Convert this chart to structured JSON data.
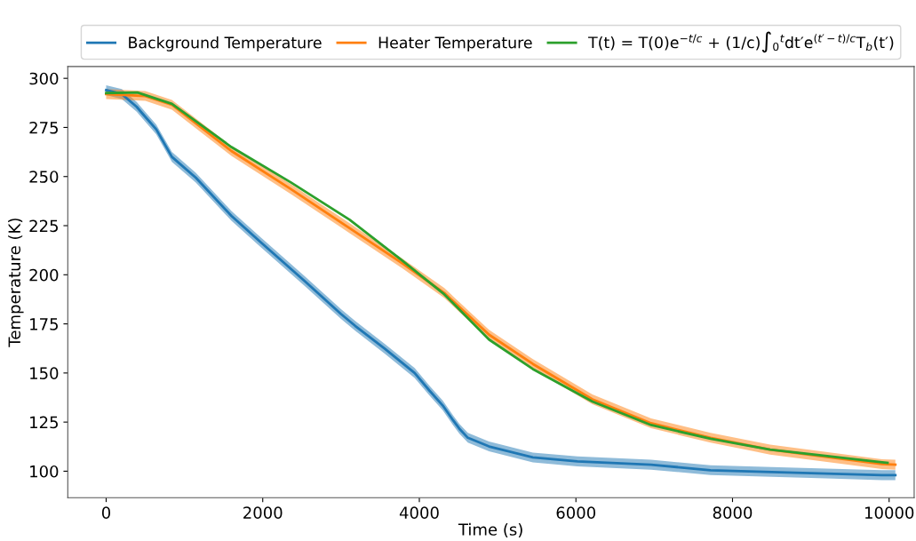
{
  "chart_data": {
    "type": "line",
    "xlabel": "Time (s)",
    "ylabel": "Temperature (K)",
    "xlim": [
      -490,
      10320
    ],
    "ylim": [
      86.5,
      306
    ],
    "xticks": [
      0,
      2000,
      4000,
      6000,
      8000,
      10000
    ],
    "yticks": [
      100,
      125,
      150,
      175,
      200,
      225,
      250,
      275,
      300
    ],
    "legend": "top",
    "grid": false,
    "series": [
      {
        "name": "Background Temperature",
        "color": "#1f77b4",
        "x": [
          0,
          200,
          390,
          465,
          640,
          840,
          1145,
          1600,
          1975,
          2540,
          3000,
          3180,
          3560,
          3940,
          4130,
          4300,
          4430,
          4510,
          4620,
          4890,
          5450,
          6020,
          6960,
          7720,
          8500,
          9200,
          9910,
          10080
        ],
        "values": [
          294,
          292,
          285.5,
          282,
          274,
          260,
          249.4,
          230,
          216.5,
          196.6,
          180,
          174,
          162.3,
          150,
          141,
          133.4,
          126,
          121.7,
          117,
          112.6,
          107,
          105,
          103.3,
          100.5,
          99.6,
          98.8,
          98,
          98
        ],
        "lower": [
          291.5,
          289.5,
          283,
          279.5,
          271.5,
          257.5,
          246.9,
          227.5,
          214,
          194.1,
          177.5,
          171.5,
          159.8,
          147.5,
          138.5,
          130.9,
          123.5,
          119.2,
          114.5,
          110.1,
          104.5,
          102.5,
          100.8,
          98,
          97.1,
          96.3,
          95.5,
          95.5
        ],
        "upper": [
          296.5,
          294.5,
          288,
          284.5,
          276.5,
          262.5,
          251.9,
          232.5,
          219,
          199.1,
          182.5,
          176.5,
          164.8,
          152.5,
          143.5,
          135.9,
          128.5,
          124.2,
          119.5,
          115.1,
          109.5,
          107.5,
          105.8,
          103,
          102.1,
          101.3,
          100.5,
          100.5
        ]
      },
      {
        "name": "Heater Temperature",
        "color": "#ff7f0e",
        "x": [
          0,
          500,
          840,
          1600,
          2360,
          3110,
          3790,
          4320,
          4890,
          5450,
          6210,
          6960,
          7720,
          8480,
          9910,
          10080
        ],
        "values": [
          292,
          291,
          286.5,
          263,
          243.6,
          223.7,
          205.6,
          190.7,
          169.5,
          154.6,
          136.6,
          124.4,
          117,
          111,
          103.6,
          103.3
        ],
        "lower": [
          289.5,
          288.5,
          284,
          260.5,
          241.1,
          221.2,
          203.1,
          188.2,
          167,
          152.1,
          134.1,
          121.9,
          114.5,
          108.5,
          101.1,
          100.8
        ],
        "upper": [
          294.5,
          293.5,
          289,
          265.5,
          246.1,
          226.2,
          208.1,
          193.2,
          172,
          157.1,
          139.1,
          126.9,
          119.5,
          113.5,
          106.1,
          105.8
        ]
      },
      {
        "name": "T(t) = T(0)e$^{−t/c}$ + (1/c)∫$_{0}$$^{t}$dt′e$^{(t′−t)/c}$T$_{b}$(t′)",
        "color": "#2ca02c",
        "x": [
          0,
          400,
          840,
          1600,
          2360,
          3110,
          3790,
          4320,
          4890,
          5450,
          6210,
          6960,
          7720,
          8480,
          9910,
          9980
        ],
        "values": [
          292.5,
          292.8,
          287,
          265,
          247,
          228,
          207,
          190,
          167,
          152,
          135.5,
          123.5,
          116.5,
          111,
          104.6,
          104.3
        ]
      }
    ]
  }
}
